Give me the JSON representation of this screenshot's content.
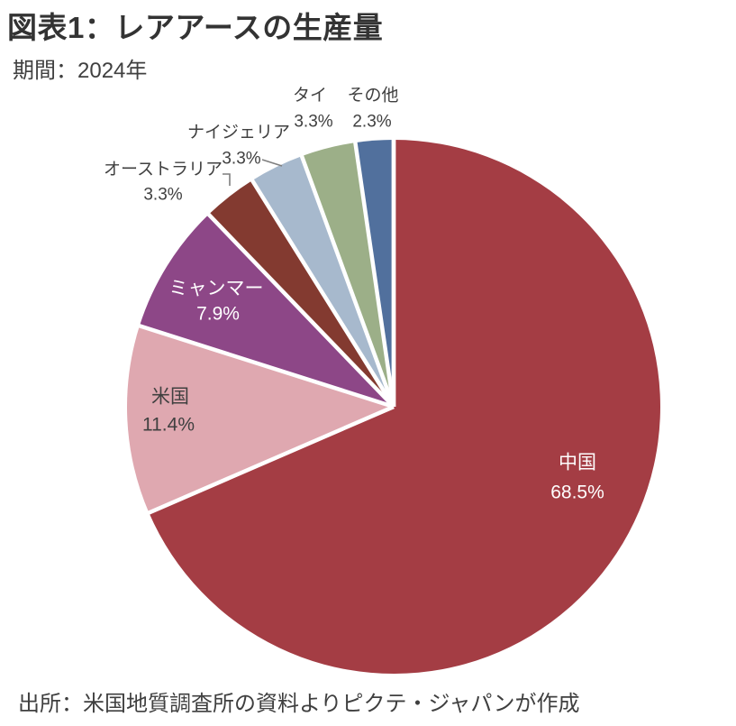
{
  "header": {
    "title": "図表1：レアアースの生産量",
    "period": "期間：2024年"
  },
  "footer": {
    "source": "出所：米国地質調査所の資料よりピクテ・ジャパンが作成"
  },
  "chart_data": {
    "type": "pie",
    "title": "図表1：レアアースの生産量",
    "period": "2024年",
    "start_angle_deg": 0,
    "direction": "clockwise",
    "separator_color": "#FFFFFF",
    "leader_line_color": "#7F7F7F",
    "slices": [
      {
        "label": "中国",
        "value": 68.5,
        "pct_label": "68.5%",
        "color": "#A43D44",
        "label_color": "#FFFFFF",
        "label_inside": true
      },
      {
        "label": "米国",
        "value": 11.4,
        "pct_label": "11.4%",
        "color": "#DFA8B0",
        "label_color": "#404040",
        "label_inside": true
      },
      {
        "label": "ミャンマー",
        "value": 7.9,
        "pct_label": "7.9%",
        "color": "#8D4787",
        "label_color": "#FFFFFF",
        "label_inside": true
      },
      {
        "label": "オーストラリア",
        "value": 3.3,
        "pct_label": "3.3%",
        "color": "#833A30",
        "label_color": "#404040",
        "label_inside": false
      },
      {
        "label": "ナイジェリア",
        "value": 3.3,
        "pct_label": "3.3%",
        "color": "#A7B9CD",
        "label_color": "#404040",
        "label_inside": false
      },
      {
        "label": "タイ",
        "value": 3.3,
        "pct_label": "3.3%",
        "color": "#9CAF88",
        "label_color": "#404040",
        "label_inside": false
      },
      {
        "label": "その他",
        "value": 2.3,
        "pct_label": "2.3%",
        "color": "#51709D",
        "label_color": "#404040",
        "label_inside": false
      }
    ],
    "source": "出所：米国地質調査所の資料よりピクテ・ジャパンが作成"
  }
}
